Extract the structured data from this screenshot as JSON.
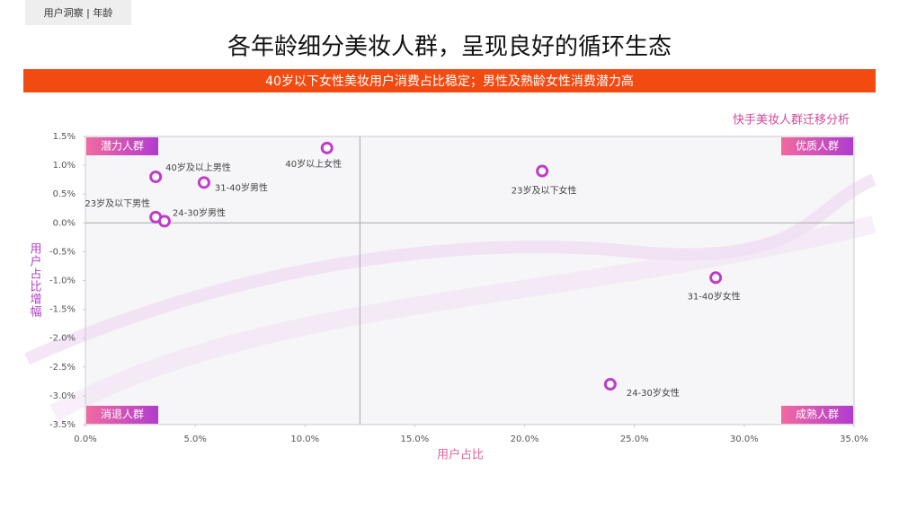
{
  "header": {
    "tag": "用户洞察 | 年龄",
    "title": "各年龄细分美妆人群，呈现良好的循环生态",
    "banner": "40岁以下女性美妆用户消费占比稳定；男性及熟龄女性消费潜力高"
  },
  "chart_data": {
    "type": "scatter",
    "title": "快手美妆人群迁移分析",
    "x_label": "用户占比",
    "y_label": "用户占比增幅",
    "quadrants": {
      "top_left": "潜力人群",
      "top_right": "优质人群",
      "bottom_left": "消退人群",
      "bottom_right": "成熟人群"
    },
    "reference_lines": {
      "x": 12.5,
      "y": 0
    },
    "series": [
      {
        "color": "#c03cc8",
        "labels": [
          "40岁以上女性",
          "40岁及以上男性",
          "31-40岁男性",
          "23岁及以下男性",
          "24-30岁男性",
          "23岁及以下女性",
          "31-40岁女性",
          "24-30岁女性"
        ],
        "x": [
          11.0,
          3.2,
          5.4,
          3.2,
          3.6,
          20.8,
          28.7,
          23.9
        ],
        "values": [
          1.3,
          0.8,
          0.7,
          0.1,
          0.03,
          0.9,
          -0.95,
          -2.8
        ]
      }
    ],
    "xlim": [
      0,
      35
    ],
    "xticks": [
      {
        "value": 0,
        "label": "0.0%"
      },
      {
        "value": 5,
        "label": "5.0%"
      },
      {
        "value": 10,
        "label": "10.0%"
      },
      {
        "value": 15,
        "label": "15.0%"
      },
      {
        "value": 20,
        "label": "20.0%"
      },
      {
        "value": 25,
        "label": "25.0%"
      },
      {
        "value": 30,
        "label": "30.0%"
      },
      {
        "value": 35,
        "label": "35.0%"
      }
    ],
    "ylim": [
      -3.5,
      1.5
    ],
    "yticks": [
      {
        "value": 1.5,
        "label": "1.5%"
      },
      {
        "value": 1,
        "label": "1.0%"
      },
      {
        "value": 0.5,
        "label": "0.5%"
      },
      {
        "value": 0,
        "label": "0.0%"
      },
      {
        "value": -0.5,
        "label": "-0.5%"
      },
      {
        "value": -1,
        "label": "-1.0%"
      },
      {
        "value": -1.5,
        "label": "-1.5%"
      },
      {
        "value": -2,
        "label": "-2.0%"
      },
      {
        "value": -2.5,
        "label": "-2.5%"
      },
      {
        "value": -3,
        "label": "-3.0%"
      },
      {
        "value": -3.5,
        "label": "-3.5%"
      }
    ]
  }
}
